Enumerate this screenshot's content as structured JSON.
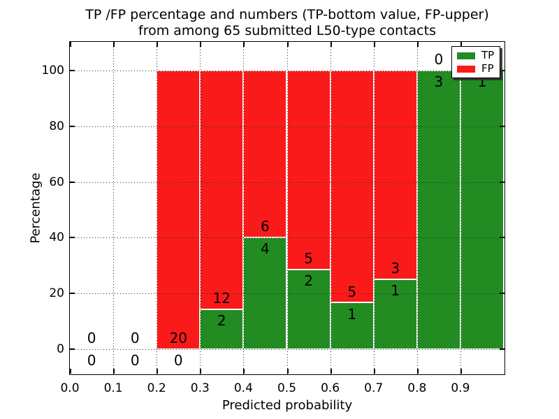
{
  "figure": {
    "title_line1": "TP /FP percentage and numbers (TP-bottom value, FP-upper)",
    "title_line2": "from among 65 submitted L50-type contacts"
  },
  "axes": {
    "xlabel": "Predicted probability",
    "ylabel": "Percentage",
    "xtick_labels": [
      "0.0",
      "0.1",
      "0.2",
      "0.3",
      "0.4",
      "0.5",
      "0.6",
      "0.7",
      "0.8",
      "0.9"
    ],
    "ytick_labels": [
      "0",
      "20",
      "40",
      "60",
      "80",
      "100"
    ]
  },
  "legend": {
    "items": [
      {
        "label": "TP",
        "color": "#228b22"
      },
      {
        "label": "FP",
        "color": "#fa1a1a"
      }
    ]
  },
  "colors": {
    "tp_green": "#228b22",
    "fp_red": "#fa1a1a",
    "grid": "#2a2a2a",
    "background": "#ffffff"
  },
  "chart_data": {
    "type": "bar",
    "stacked": true,
    "title": "TP /FP percentage and numbers (TP-bottom value, FP-upper) from among 65 submitted L50-type contacts",
    "xlabel": "Predicted probability",
    "ylabel": "Percentage",
    "xlim": [
      0.0,
      1.0
    ],
    "ylim": [
      -9,
      110
    ],
    "xticks": [
      0.0,
      0.1,
      0.2,
      0.3,
      0.4,
      0.5,
      0.6,
      0.7,
      0.8,
      0.9
    ],
    "yticks": [
      0,
      20,
      40,
      60,
      80,
      100
    ],
    "grid": "dotted",
    "legend_position": "upper-right",
    "total_submitted_contacts": 65,
    "bin_width": 0.1,
    "categories": [
      "0.0-0.1",
      "0.1-0.2",
      "0.2-0.3",
      "0.3-0.4",
      "0.4-0.5",
      "0.5-0.6",
      "0.6-0.7",
      "0.7-0.8",
      "0.8-0.9",
      "0.9-1.0"
    ],
    "series": [
      {
        "name": "TP",
        "color": "#228b22",
        "counts": [
          0,
          0,
          0,
          2,
          4,
          2,
          1,
          1,
          3,
          1
        ],
        "percent_heights": [
          0,
          0,
          0,
          14.29,
          40.0,
          28.57,
          16.67,
          25.0,
          100.0,
          100.0
        ]
      },
      {
        "name": "FP",
        "color": "#fa1a1a",
        "counts": [
          0,
          0,
          20,
          12,
          6,
          5,
          5,
          3,
          0,
          0
        ],
        "percent_heights": [
          0,
          0,
          100.0,
          85.71,
          60.0,
          71.43,
          83.33,
          75.0,
          0,
          0
        ]
      }
    ],
    "bar_annotations": {
      "fp_labels": [
        "0",
        "0",
        "20",
        "12",
        "6",
        "5",
        "5",
        "3",
        "0",
        "0"
      ],
      "tp_labels": [
        "0",
        "0",
        "0",
        "2",
        "4",
        "2",
        "1",
        "1",
        "3",
        "1"
      ],
      "fp_label_last_bin_covered_by_legend": true
    }
  }
}
